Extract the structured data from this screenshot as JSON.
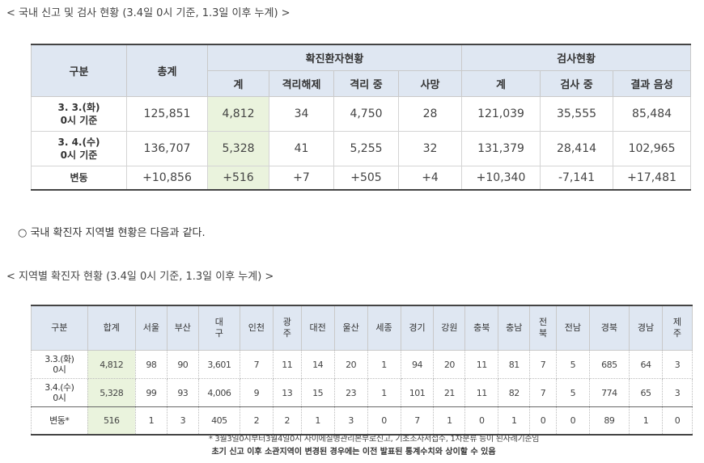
{
  "title1": "< 국내 신고 및 검사 현황 (3.4일 0시 기준, 1.3일 이후 누계) >",
  "table1": {
    "headers": {
      "gubun": "구분",
      "total": "총계",
      "confirmed_group": "확진환자현황",
      "test_group": "검사현황",
      "confirmed_sub": [
        "계",
        "격리해제",
        "격리 중",
        "사망"
      ],
      "test_sub": [
        "계",
        "검사 중",
        "결과 음성"
      ]
    },
    "rows": [
      {
        "label1": "3. 3.(화)",
        "label2": "0시 기준",
        "cells": [
          "125,851",
          "4,812",
          "34",
          "4,750",
          "28",
          "121,039",
          "35,555",
          "85,484"
        ]
      },
      {
        "label1": "3. 4.(수)",
        "label2": "0시 기준",
        "cells": [
          "136,707",
          "5,328",
          "41",
          "5,255",
          "32",
          "131,379",
          "28,414",
          "102,965"
        ]
      },
      {
        "label1": "변동",
        "label2": "",
        "cells": [
          "+10,856",
          "+516",
          "+7",
          "+505",
          "+4",
          "+10,340",
          "-7,141",
          "+17,481"
        ]
      }
    ]
  },
  "bullet": "○ 국내 확진자 지역별 현황은 다음과 같다.",
  "title2": "< 지역별 확진자 현황 (3.4일 0시 기준, 1.3일 이후 누계) >",
  "table2": {
    "headers": [
      {
        "l1": "구분",
        "l2": ""
      },
      {
        "l1": "합계",
        "l2": ""
      },
      {
        "l1": "서울",
        "l2": ""
      },
      {
        "l1": "부산",
        "l2": ""
      },
      {
        "l1": "대",
        "l2": "구"
      },
      {
        "l1": "인천",
        "l2": ""
      },
      {
        "l1": "광",
        "l2": "주"
      },
      {
        "l1": "대전",
        "l2": ""
      },
      {
        "l1": "울산",
        "l2": ""
      },
      {
        "l1": "세종",
        "l2": ""
      },
      {
        "l1": "경기",
        "l2": ""
      },
      {
        "l1": "강원",
        "l2": ""
      },
      {
        "l1": "충북",
        "l2": ""
      },
      {
        "l1": "충남",
        "l2": ""
      },
      {
        "l1": "전",
        "l2": "북"
      },
      {
        "l1": "전남",
        "l2": ""
      },
      {
        "l1": "경북",
        "l2": ""
      },
      {
        "l1": "경남",
        "l2": ""
      },
      {
        "l1": "제",
        "l2": "주"
      }
    ],
    "rows": [
      {
        "label1": "3.3.(화)",
        "label2": "0시",
        "cells": [
          "4,812",
          "98",
          "90",
          "3,601",
          "7",
          "11",
          "14",
          "20",
          "1",
          "94",
          "20",
          "11",
          "81",
          "7",
          "5",
          "685",
          "64",
          "3"
        ]
      },
      {
        "label1": "3.4.(수)",
        "label2": "0시",
        "cells": [
          "5,328",
          "99",
          "93",
          "4,006",
          "9",
          "13",
          "15",
          "23",
          "1",
          "101",
          "21",
          "11",
          "82",
          "7",
          "5",
          "774",
          "65",
          "3"
        ]
      },
      {
        "label1": "변동*",
        "label2": "",
        "cells": [
          "516",
          "1",
          "3",
          "405",
          "2",
          "2",
          "1",
          "3",
          "0",
          "7",
          "1",
          "0",
          "1",
          "0",
          "0",
          "89",
          "1",
          "0"
        ]
      }
    ]
  },
  "note1": "* 3월3일0시부터3월4일0시 사이에질병관리본부로신고, 기초조사서접수, 1차분류 등이 된사례기준임",
  "note2": "초기 신고 이후 소관지역이 변경된 경우에는 이전 발표된 통계수치와 상이할 수 있음"
}
